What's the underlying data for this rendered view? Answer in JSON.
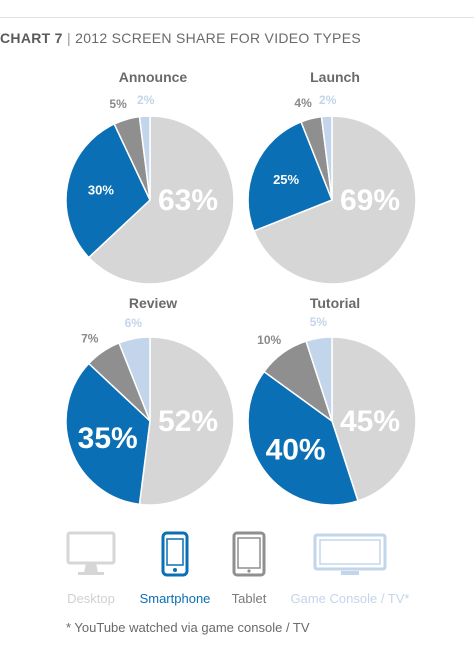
{
  "header": {
    "chart_number": "CHART 7",
    "separator": "|",
    "title": "2012 SCREEN SHARE FOR VIDEO TYPES"
  },
  "colors": {
    "desktop": "#d6d6d6",
    "smartphone": "#0a6fb4",
    "tablet": "#8f8f8f",
    "game_console": "#c3d5ea",
    "title_text": "#6a6a6a"
  },
  "chart_data": {
    "type": "pie",
    "title": "2012 SCREEN SHARE FOR VIDEO TYPES",
    "series_names": [
      "Desktop",
      "Smartphone",
      "Tablet",
      "Game Console / TV*"
    ],
    "pies": [
      {
        "title": "Announce",
        "values": [
          63,
          30,
          5,
          2
        ],
        "labels": [
          "63%",
          "30%",
          "5%",
          "2%"
        ]
      },
      {
        "title": "Launch",
        "values": [
          69,
          25,
          4,
          2
        ],
        "labels": [
          "69%",
          "25%",
          "4%",
          "2%"
        ]
      },
      {
        "title": "Review",
        "values": [
          52,
          35,
          7,
          6
        ],
        "labels": [
          "52%",
          "35%",
          "7%",
          "6%"
        ]
      },
      {
        "title": "Tutorial",
        "values": [
          45,
          40,
          10,
          5
        ],
        "labels": [
          "45%",
          "40%",
          "10%",
          "5%"
        ]
      }
    ],
    "legend_position": "bottom"
  },
  "legend": {
    "desktop": "Desktop",
    "smartphone": "Smartphone",
    "tablet": "Tablet",
    "game_console": "Game Console / TV*"
  },
  "footnote": "* YouTube watched via game console / TV"
}
